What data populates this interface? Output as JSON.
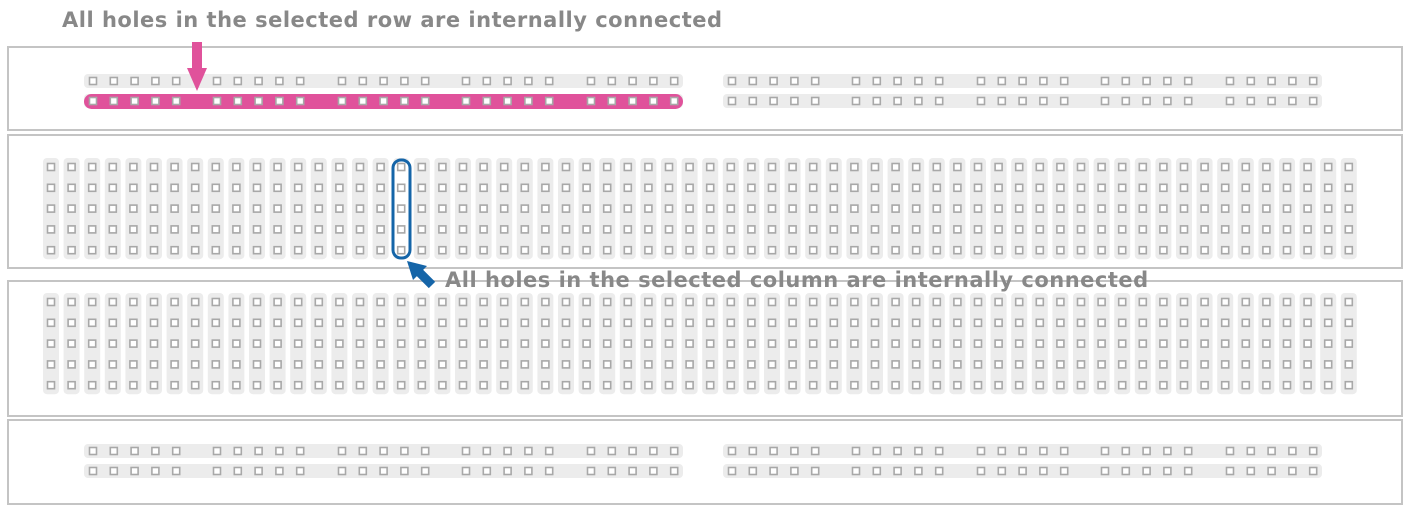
{
  "annotations": {
    "row_caption": "All holes in the selected row are internally connected",
    "column_caption": "All holes in the selected column are internally connected"
  },
  "breadboard": {
    "terminal_columns": 64,
    "terminal_rows_per_block": 5,
    "rail_groups_per_half": 5,
    "holes_per_rail_group": 5,
    "rail_rows_per_strip": 2,
    "highlighted_rail_row": "top rail strip, lower row, left half",
    "highlighted_column": 18
  },
  "colors": {
    "row_highlight": "#e0529b",
    "column_highlight": "#1565a8",
    "hole": "#a8a8a8",
    "hole_fill": "#ffffff",
    "strip_background": "#ececec",
    "board_border": "#c4c4c4",
    "caption_text": "#888888"
  }
}
